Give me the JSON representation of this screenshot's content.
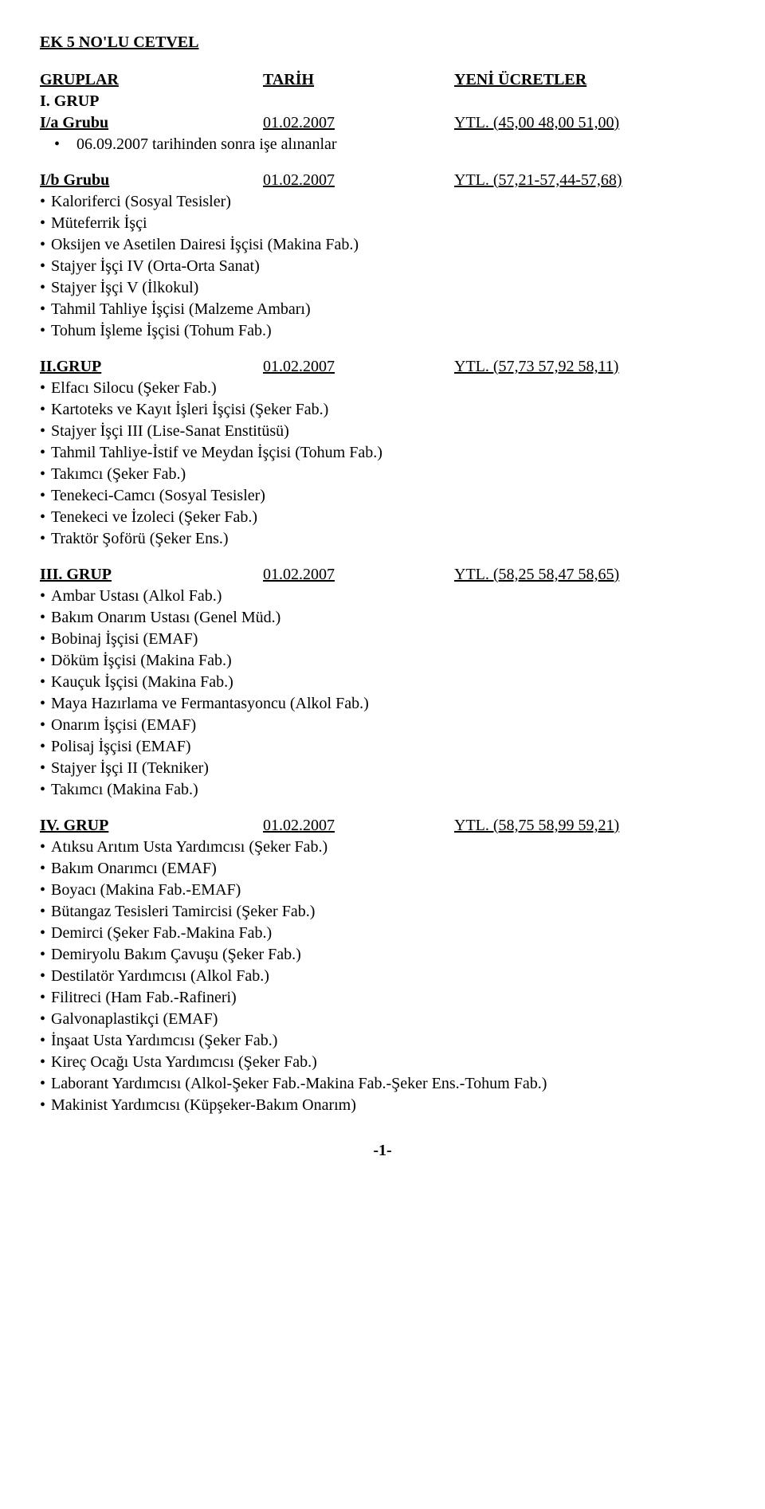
{
  "title": "EK 5 NO'LU CETVEL",
  "headers": {
    "col1": "GRUPLAR",
    "col2": "TARİH",
    "col3": "YENİ ÜCRETLER"
  },
  "groupI": "I. GRUP",
  "rowIa": {
    "col1": "I/a Grubu",
    "col2": "01.02.2007",
    "col3": "YTL. (45,00 48,00 51,00)"
  },
  "noteIa": "06.09.2007 tarihinden sonra işe alınanlar",
  "rowIb": {
    "col1": "I/b Grubu",
    "col2": "01.02.2007",
    "col3": "YTL. (57,21-57,44-57,68)"
  },
  "itemsIb": [
    "Kaloriferci (Sosyal Tesisler)",
    "Müteferrik İşçi",
    "Oksijen ve Asetilen Dairesi İşçisi (Makina Fab.)",
    "Stajyer İşçi IV (Orta-Orta Sanat)",
    "Stajyer İşçi V (İlkokul)",
    "Tahmil Tahliye İşçisi (Malzeme Ambarı)",
    "Tohum İşleme İşçisi (Tohum Fab.)"
  ],
  "rowII": {
    "col1": "II.GRUP",
    "col2": "01.02.2007",
    "col3": "YTL. (57,73 57,92 58,11)"
  },
  "itemsII": [
    "Elfacı Silocu (Şeker Fab.)",
    "Kartoteks ve Kayıt İşleri İşçisi (Şeker Fab.)",
    "Stajyer İşçi III (Lise-Sanat Enstitüsü)",
    "Tahmil Tahliye-İstif ve Meydan İşçisi (Tohum Fab.)",
    "Takımcı (Şeker Fab.)",
    "Tenekeci-Camcı (Sosyal Tesisler)",
    "Tenekeci ve İzoleci (Şeker Fab.)",
    "Traktör Şoförü (Şeker Ens.)"
  ],
  "rowIII": {
    "col1": "III. GRUP",
    "col2": "01.02.2007",
    "col3": "YTL. (58,25 58,47 58,65)"
  },
  "itemsIII": [
    "Ambar Ustası (Alkol Fab.)",
    "Bakım Onarım Ustası (Genel Müd.)",
    "Bobinaj İşçisi (EMAF)",
    "Döküm İşçisi (Makina Fab.)",
    "Kauçuk İşçisi (Makina Fab.)",
    "Maya Hazırlama ve Fermantasyoncu (Alkol Fab.)",
    "Onarım İşçisi (EMAF)",
    "Polisaj İşçisi (EMAF)",
    "Stajyer İşçi II (Tekniker)",
    "Takımcı (Makina Fab.)"
  ],
  "rowIV": {
    "col1": "IV. GRUP",
    "col2": "01.02.2007",
    "col3": "YTL. (58,75 58,99 59,21)"
  },
  "itemsIV": [
    "Atıksu Arıtım Usta Yardımcısı (Şeker Fab.)",
    "Bakım Onarımcı (EMAF)",
    "Boyacı (Makina Fab.-EMAF)",
    "Bütangaz Tesisleri Tamircisi (Şeker Fab.)",
    "Demirci (Şeker Fab.-Makina Fab.)",
    "Demiryolu Bakım Çavuşu (Şeker Fab.)",
    "Destilatör Yardımcısı (Alkol Fab.)",
    "Filitreci (Ham Fab.-Rafineri)",
    "Galvonaplastikçi (EMAF)",
    "İnşaat Usta Yardımcısı (Şeker Fab.)",
    "Kireç Ocağı Usta Yardımcısı (Şeker Fab.)",
    "Laborant Yardımcısı (Alkol-Şeker Fab.-Makina Fab.-Şeker Ens.-Tohum Fab.)",
    "Makinist Yardımcısı (Küpşeker-Bakım Onarım)"
  ],
  "bullet": "•",
  "pageNum": "-1-"
}
